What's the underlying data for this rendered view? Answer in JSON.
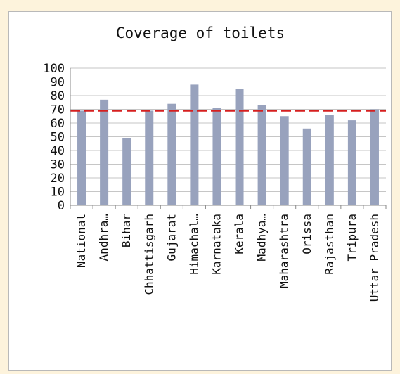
{
  "chart_data": {
    "type": "bar",
    "title": "Coverage of toilets",
    "categories": [
      "National",
      "Andhra…",
      "Bihar",
      "Chhattisgarh",
      "Gujarat",
      "Himachal…",
      "Karnataka",
      "Kerala",
      "Madhya…",
      "Maharashtra",
      "Orissa",
      "Rajasthan",
      "Tripura",
      "Uttar Pradesh"
    ],
    "values": [
      69,
      77,
      49,
      69,
      74,
      88,
      71,
      85,
      73,
      65,
      56,
      66,
      62,
      70
    ],
    "reference_line": 69,
    "ylim": [
      0,
      100
    ],
    "yticks": [
      "0",
      "10",
      "20",
      "30",
      "40",
      "50",
      "60",
      "70",
      "80",
      "90",
      "100"
    ],
    "grid": true,
    "legend": "none",
    "colors": {
      "bar": "#98a2bd",
      "reference_line": "#d61f1f",
      "grid": "#c6c6c6",
      "axis": "#8a8a8a"
    }
  }
}
